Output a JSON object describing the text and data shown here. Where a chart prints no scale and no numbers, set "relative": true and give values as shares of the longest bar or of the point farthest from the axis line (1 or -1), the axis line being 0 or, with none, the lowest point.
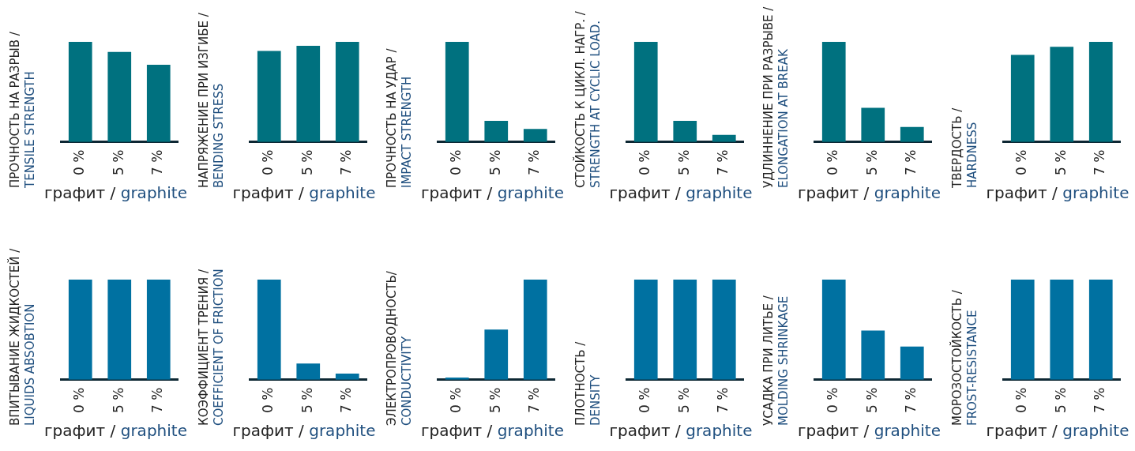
{
  "chart_data": [
    {
      "type": "bar",
      "relative": true,
      "ylabel": "ПРОЧНОСТЬ НА РАЗРЫВ /\nTENSILE STRENGTH",
      "xlabel": "графит / graphite",
      "categories": [
        "0 %",
        "5 %",
        "7 %"
      ],
      "values": [
        1,
        0.9,
        0.77
      ],
      "color": "#00717f"
    },
    {
      "type": "bar",
      "relative": true,
      "ylabel": "НАПРЯЖЕНИЕ ПРИ ИЗГИБЕ /\nBENDING STRESS",
      "xlabel": "графит / graphite",
      "categories": [
        "0 %",
        "5 %",
        "7 %"
      ],
      "values": [
        0.91,
        0.96,
        1
      ],
      "color": "#00717f"
    },
    {
      "type": "bar",
      "relative": true,
      "ylabel": "ПРОЧНОСТЬ НА УДАР /\nIMPACT STRENGTH",
      "xlabel": "графит / graphite",
      "categories": [
        "0 %",
        "5 %",
        "7 %"
      ],
      "values": [
        1,
        0.21,
        0.13
      ],
      "color": "#00717f"
    },
    {
      "type": "bar",
      "relative": true,
      "ylabel": "СТОЙКОСТЬ К ЦИКЛ. НАГР. /\nSTRENGTH AT CYCLIC LOAD.",
      "xlabel": "графит / graphite",
      "categories": [
        "0 %",
        "5 %",
        "7 %"
      ],
      "values": [
        1,
        0.21,
        0.07
      ],
      "color": "#00717f"
    },
    {
      "type": "bar",
      "relative": true,
      "ylabel": "УДЛИННЕНИЕ ПРИ РАЗРЫВЕ /\nELONGATION AT BREAK",
      "xlabel": "графит / graphite",
      "categories": [
        "0 %",
        "5 %",
        "7 %"
      ],
      "values": [
        1,
        0.34,
        0.15
      ],
      "color": "#00717f"
    },
    {
      "type": "bar",
      "relative": true,
      "ylabel": "ТВЕРДОСТЬ /\nHARDNESS",
      "xlabel": "графит / graphite",
      "categories": [
        "0 %",
        "5 %",
        "7 %"
      ],
      "values": [
        0.87,
        0.95,
        1
      ],
      "color": "#00717f"
    },
    {
      "type": "bar",
      "relative": true,
      "ylabel": "ВПИТЫВАНИЕ ЖИДКОСТЕЙ /\nLIQUIDS ABSOBTION",
      "xlabel": "графит / graphite",
      "categories": [
        "0 %",
        "5 %",
        "7 %"
      ],
      "values": [
        1,
        1,
        1
      ],
      "color": "#0071a1"
    },
    {
      "type": "bar",
      "relative": true,
      "ylabel": "КОЭФФИЦИЕНТ ТРЕНИЯ /\nCOEFFICIENT OF FRICTION",
      "xlabel": "графит / graphite",
      "categories": [
        "0 %",
        "5 %",
        "7 %"
      ],
      "values": [
        1,
        0.16,
        0.06
      ],
      "color": "#0071a1"
    },
    {
      "type": "bar",
      "relative": true,
      "ylabel": "ЭЛЕКТРОПРОВОДНОСТЬ/\nCONDUCTIVITY",
      "xlabel": "графит / graphite",
      "categories": [
        "0 %",
        "5 %",
        "7 %"
      ],
      "values": [
        0.02,
        0.5,
        1
      ],
      "color": "#0071a1"
    },
    {
      "type": "bar",
      "relative": true,
      "ylabel": "ПЛОТНОСТЬ /\nDENSITY",
      "xlabel": "графит / graphite",
      "categories": [
        "0 %",
        "5 %",
        "7 %"
      ],
      "values": [
        1,
        1,
        1
      ],
      "color": "#0071a1"
    },
    {
      "type": "bar",
      "relative": true,
      "ylabel": "УСАДКА ПРИ ЛИТЬЕ /\nMOLDING SHRINKAGE",
      "xlabel": "графит / graphite",
      "categories": [
        "0 %",
        "5 %",
        "7 %"
      ],
      "values": [
        1,
        0.49,
        0.33
      ],
      "color": "#0071a1"
    },
    {
      "type": "bar",
      "relative": true,
      "ylabel": "МОРОЗОСТОЙКОСТЬ /\nFROST-RESISTANCE",
      "xlabel": "графит / graphite",
      "categories": [
        "0 %",
        "5 %",
        "7 %"
      ],
      "values": [
        1,
        1,
        1
      ],
      "color": "#0071a1"
    }
  ]
}
